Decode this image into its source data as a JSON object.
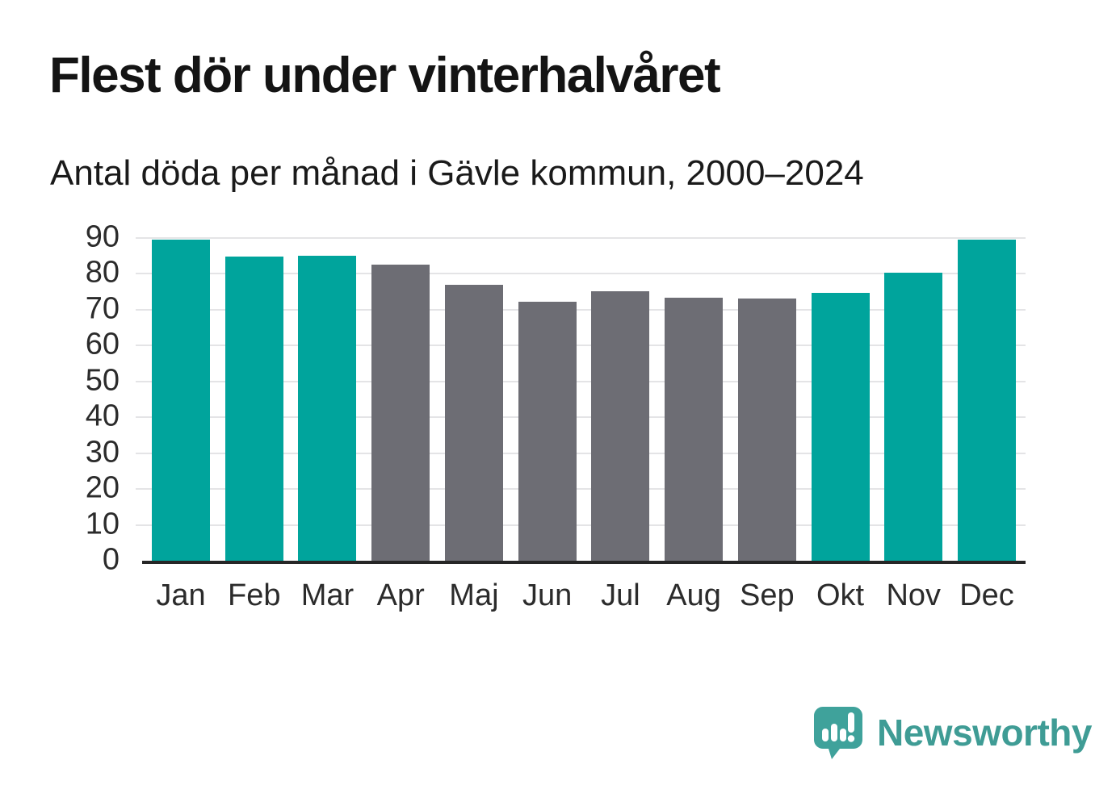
{
  "header": {
    "title": "Flest dör under vinterhalvåret",
    "subtitle": "Antal döda per månad i Gävle kommun, 2000–2024"
  },
  "colors": {
    "highlight_teal": "#00a49c",
    "neutral_gray": "#6d6d74",
    "gridline": "#e4e4e6",
    "axis_line": "#262626",
    "text": "#1a1a1a",
    "logo_teal": "#3f9c95"
  },
  "chart_data": {
    "type": "bar",
    "title": "Flest dör under vinterhalvåret",
    "subtitle": "Antal döda per månad i Gävle kommun, 2000–2024",
    "categories": [
      "Jan",
      "Feb",
      "Mar",
      "Apr",
      "Maj",
      "Jun",
      "Jul",
      "Aug",
      "Sep",
      "Okt",
      "Nov",
      "Dec"
    ],
    "values": [
      89.6,
      84.8,
      85.1,
      82.5,
      77.0,
      72.2,
      75.2,
      73.4,
      73.1,
      74.7,
      80.3,
      89.5
    ],
    "bar_colors": [
      "#00a49c",
      "#00a49c",
      "#00a49c",
      "#6d6d74",
      "#6d6d74",
      "#6d6d74",
      "#6d6d74",
      "#6d6d74",
      "#6d6d74",
      "#00a49c",
      "#00a49c",
      "#00a49c"
    ],
    "xlabel": "",
    "ylabel": "",
    "ylim": [
      0,
      90
    ],
    "yticks": [
      0,
      10,
      20,
      30,
      40,
      50,
      60,
      70,
      80,
      90
    ],
    "grid": "horizontal",
    "legend": "none"
  },
  "footer": {
    "brand": "Newsworthy"
  }
}
